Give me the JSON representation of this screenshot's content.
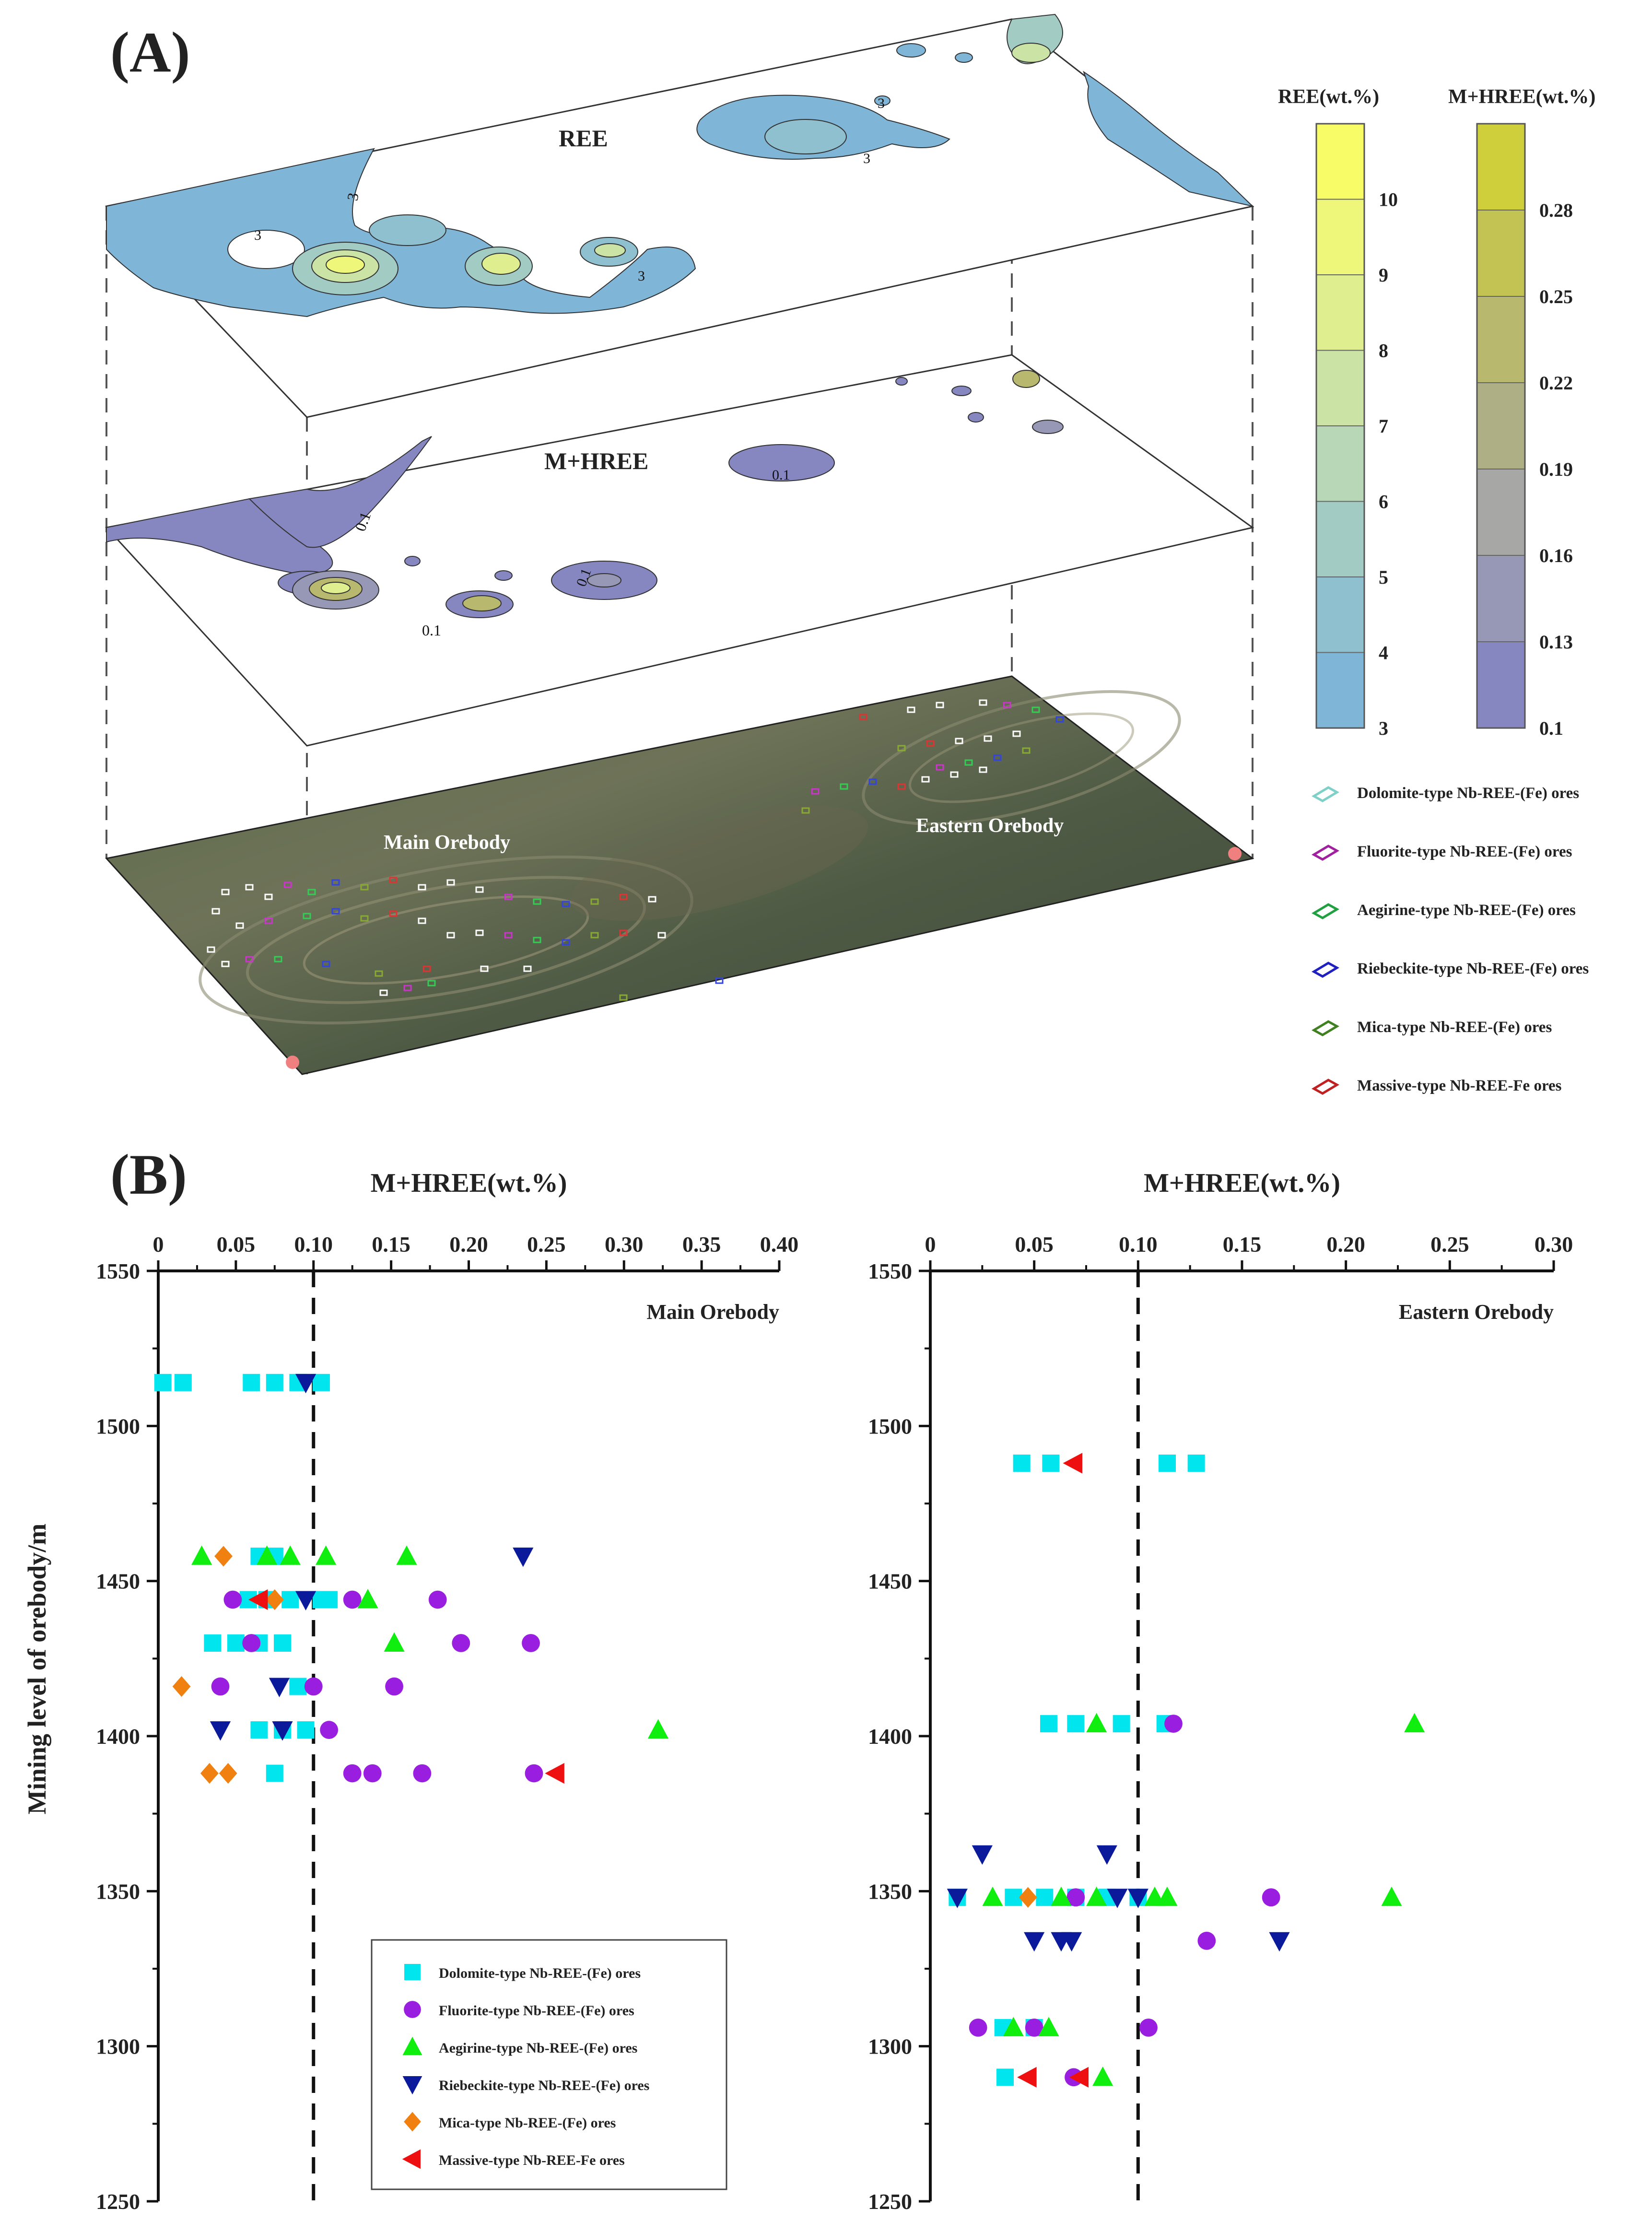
{
  "panelA": {
    "label": "(A)",
    "layer_top_label": "REE",
    "layer_mid_label": "M+HREE",
    "map_labels": {
      "main": "Main Orebody",
      "eastern": "Eastern Orebody"
    },
    "contour_labels_top": [
      "3",
      "3",
      "3",
      "3",
      "3"
    ],
    "contour_labels_mid": [
      "0.1",
      "0.1",
      "0.1",
      "0.1"
    ],
    "colorbar_ree": {
      "title": "REE(wt.%)",
      "ticks": [
        "3",
        "4",
        "5",
        "6",
        "7",
        "8",
        "9",
        "10"
      ],
      "colors": [
        "#7fb6d8",
        "#8fc0cf",
        "#a2cbc4",
        "#b7d7b6",
        "#cbe3a4",
        "#dfee8f",
        "#eef77a",
        "#f8fc66"
      ]
    },
    "colorbar_mhree": {
      "title": "M+HREE(wt.%)",
      "ticks": [
        "0.1",
        "0.13",
        "0.16",
        "0.19",
        "0.22",
        "0.25",
        "0.28"
      ],
      "colors": [
        "#8686c0",
        "#9797b6",
        "#a7a7a6",
        "#afaf86",
        "#b8b86e",
        "#c3c354",
        "#cfcf3c"
      ]
    },
    "legend": [
      {
        "label": "Dolomite-type Nb-REE-(Fe) ores",
        "color": "#7fd0c8"
      },
      {
        "label": "Fluorite-type Nb-REE-(Fe) ores",
        "color": "#a020a0"
      },
      {
        "label": "Aegirine-type Nb-REE-(Fe) ores",
        "color": "#20a040"
      },
      {
        "label": "Riebeckite-type Nb-REE-(Fe) ores",
        "color": "#2020c0"
      },
      {
        "label": "Mica-type Nb-REE-(Fe) ores",
        "color": "#408020"
      },
      {
        "label": "Massive-type Nb-REE-Fe ores",
        "color": "#c02020"
      }
    ]
  },
  "panelB": {
    "label": "(B)",
    "ylabel": "Mining level of orebody/m",
    "legend": [
      {
        "label": "Dolomite-type Nb-REE-(Fe) ores",
        "marker": "square",
        "color": "#00e5ee"
      },
      {
        "label": "Fluorite-type Nb-REE-(Fe) ores",
        "marker": "circle",
        "color": "#9a1ee0"
      },
      {
        "label": "Aegirine-type Nb-REE-(Fe) ores",
        "marker": "triangle-up",
        "color": "#10ee10"
      },
      {
        "label": "Riebeckite-type Nb-REE-(Fe) ores",
        "marker": "triangle-down",
        "color": "#0a1a9a"
      },
      {
        "label": "Mica-type Nb-REE-(Fe) ores",
        "marker": "diamond",
        "color": "#f08010"
      },
      {
        "label": "Massive-type Nb-REE-Fe ores",
        "marker": "triangle-left",
        "color": "#ee1010"
      }
    ]
  },
  "chart_data": [
    {
      "type": "scatter",
      "title": "Main Orebody",
      "xlabel": "M+HREE(wt.%)",
      "ylabel": "Mining level of orebody/m",
      "xlim": [
        0,
        0.4
      ],
      "ylim": [
        1250,
        1550
      ],
      "xticks": [
        "0",
        "0.05",
        "0.10",
        "0.15",
        "0.20",
        "0.25",
        "0.30",
        "0.35",
        "0.40"
      ],
      "yticks": [
        "1550",
        "1500",
        "1450",
        "1400",
        "1350",
        "1300",
        "1250"
      ],
      "reference_x": 0.1,
      "series": [
        {
          "name": "Dolomite-type Nb-REE-(Fe) ores",
          "points": [
            [
              0.003,
              1514
            ],
            [
              0.016,
              1514
            ],
            [
              0.06,
              1514
            ],
            [
              0.075,
              1514
            ],
            [
              0.09,
              1514
            ],
            [
              0.105,
              1514
            ],
            [
              0.065,
              1458
            ],
            [
              0.075,
              1458
            ],
            [
              0.058,
              1444
            ],
            [
              0.07,
              1444
            ],
            [
              0.085,
              1444
            ],
            [
              0.105,
              1444
            ],
            [
              0.11,
              1444
            ],
            [
              0.035,
              1430
            ],
            [
              0.05,
              1430
            ],
            [
              0.065,
              1430
            ],
            [
              0.08,
              1430
            ],
            [
              0.09,
              1416
            ],
            [
              0.065,
              1402
            ],
            [
              0.08,
              1402
            ],
            [
              0.095,
              1402
            ],
            [
              0.075,
              1388
            ]
          ]
        },
        {
          "name": "Fluorite-type Nb-REE-(Fe) ores",
          "points": [
            [
              0.048,
              1444
            ],
            [
              0.125,
              1444
            ],
            [
              0.18,
              1444
            ],
            [
              0.06,
              1430
            ],
            [
              0.195,
              1430
            ],
            [
              0.24,
              1430
            ],
            [
              0.04,
              1416
            ],
            [
              0.1,
              1416
            ],
            [
              0.152,
              1416
            ],
            [
              0.11,
              1402
            ],
            [
              0.125,
              1388
            ],
            [
              0.138,
              1388
            ],
            [
              0.17,
              1388
            ],
            [
              0.242,
              1388
            ]
          ]
        },
        {
          "name": "Aegirine-type Nb-REE-(Fe) ores",
          "points": [
            [
              0.028,
              1458
            ],
            [
              0.07,
              1458
            ],
            [
              0.085,
              1458
            ],
            [
              0.108,
              1458
            ],
            [
              0.16,
              1458
            ],
            [
              0.135,
              1444
            ],
            [
              0.152,
              1430
            ],
            [
              0.322,
              1402
            ]
          ]
        },
        {
          "name": "Riebeckite-type Nb-REE-(Fe) ores",
          "points": [
            [
              0.095,
              1514
            ],
            [
              0.235,
              1458
            ],
            [
              0.095,
              1444
            ],
            [
              0.078,
              1416
            ],
            [
              0.04,
              1402
            ],
            [
              0.08,
              1402
            ]
          ]
        },
        {
          "name": "Mica-type Nb-REE-(Fe) ores",
          "points": [
            [
              0.042,
              1458
            ],
            [
              0.075,
              1444
            ],
            [
              0.015,
              1416
            ],
            [
              0.033,
              1388
            ],
            [
              0.045,
              1388
            ]
          ]
        },
        {
          "name": "Massive-type Nb-REE-Fe ores",
          "points": [
            [
              0.065,
              1444
            ],
            [
              0.256,
              1388
            ]
          ]
        }
      ]
    },
    {
      "type": "scatter",
      "title": "Eastern Orebody",
      "xlabel": "M+HREE(wt.%)",
      "ylabel": "Mining level of orebody/m",
      "xlim": [
        0,
        0.3
      ],
      "ylim": [
        1250,
        1550
      ],
      "xticks": [
        "0",
        "0.05",
        "0.10",
        "0.15",
        "0.20",
        "0.25",
        "0.30"
      ],
      "yticks": [
        "1550",
        "1500",
        "1450",
        "1400",
        "1350",
        "1300",
        "1250"
      ],
      "reference_x": 0.1,
      "series": [
        {
          "name": "Dolomite-type Nb-REE-(Fe) ores",
          "points": [
            [
              0.044,
              1488
            ],
            [
              0.058,
              1488
            ],
            [
              0.114,
              1488
            ],
            [
              0.128,
              1488
            ],
            [
              0.057,
              1404
            ],
            [
              0.07,
              1404
            ],
            [
              0.092,
              1404
            ],
            [
              0.113,
              1404
            ],
            [
              0.013,
              1348
            ],
            [
              0.04,
              1348
            ],
            [
              0.055,
              1348
            ],
            [
              0.07,
              1348
            ],
            [
              0.085,
              1348
            ],
            [
              0.1,
              1348
            ],
            [
              0.035,
              1306
            ],
            [
              0.05,
              1306
            ],
            [
              0.036,
              1290
            ]
          ]
        },
        {
          "name": "Fluorite-type Nb-REE-(Fe) ores",
          "points": [
            [
              0.117,
              1404
            ],
            [
              0.07,
              1348
            ],
            [
              0.164,
              1348
            ],
            [
              0.133,
              1334
            ],
            [
              0.023,
              1306
            ],
            [
              0.05,
              1306
            ],
            [
              0.105,
              1306
            ],
            [
              0.069,
              1290
            ]
          ]
        },
        {
          "name": "Aegirine-type Nb-REE-(Fe) ores",
          "points": [
            [
              0.08,
              1404
            ],
            [
              0.233,
              1404
            ],
            [
              0.03,
              1348
            ],
            [
              0.063,
              1348
            ],
            [
              0.08,
              1348
            ],
            [
              0.108,
              1348
            ],
            [
              0.114,
              1348
            ],
            [
              0.222,
              1348
            ],
            [
              0.04,
              1306
            ],
            [
              0.057,
              1306
            ],
            [
              0.083,
              1290
            ]
          ]
        },
        {
          "name": "Riebeckite-type Nb-REE-(Fe) ores",
          "points": [
            [
              0.025,
              1362
            ],
            [
              0.085,
              1362
            ],
            [
              0.013,
              1348
            ],
            [
              0.09,
              1348
            ],
            [
              0.1,
              1348
            ],
            [
              0.05,
              1334
            ],
            [
              0.063,
              1334
            ],
            [
              0.068,
              1334
            ],
            [
              0.168,
              1334
            ]
          ]
        },
        {
          "name": "Mica-type Nb-REE-(Fe) ores",
          "points": [
            [
              0.047,
              1348
            ]
          ]
        },
        {
          "name": "Massive-type Nb-REE-Fe ores",
          "points": [
            [
              0.069,
              1488
            ],
            [
              0.047,
              1290
            ],
            [
              0.072,
              1290
            ]
          ]
        }
      ]
    }
  ]
}
